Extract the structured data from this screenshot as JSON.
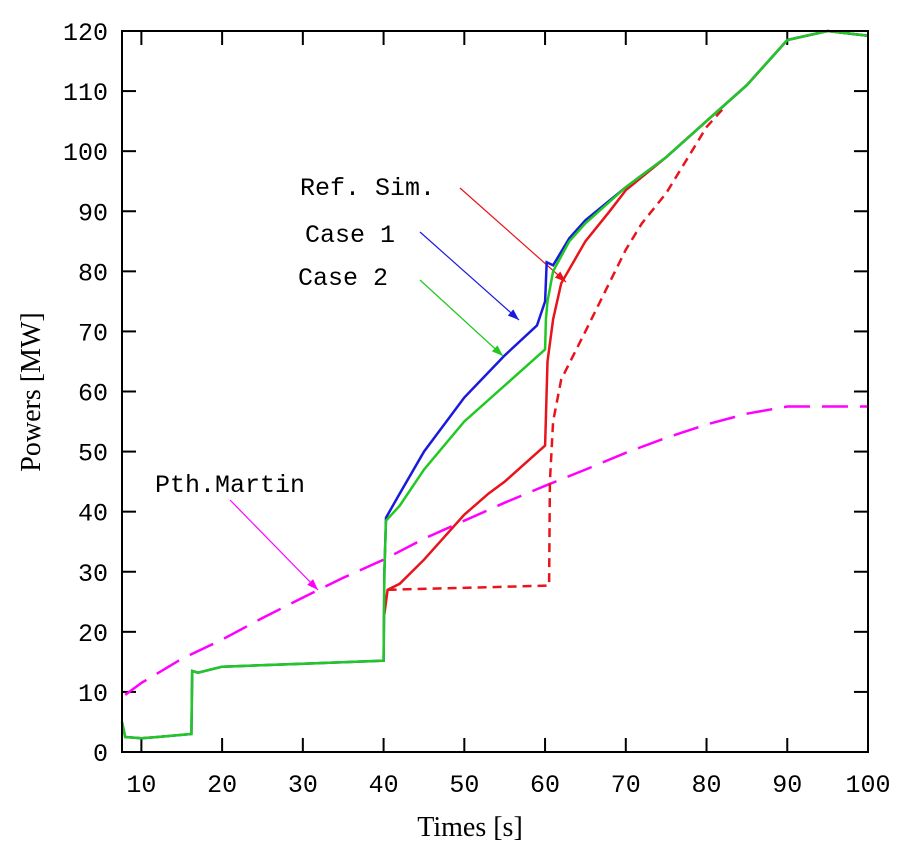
{
  "chart_data": {
    "type": "line",
    "xlabel": "Times [s]",
    "ylabel": "Powers [MW]",
    "xlim": [
      7.6,
      100
    ],
    "ylim": [
      0,
      120
    ],
    "xticks": [
      10,
      20,
      30,
      40,
      50,
      60,
      70,
      80,
      90,
      100
    ],
    "yticks": [
      0,
      10,
      20,
      30,
      40,
      50,
      60,
      70,
      80,
      90,
      100,
      110,
      120
    ],
    "series": [
      {
        "name": "Ref. Sim.",
        "color": "#e8141c",
        "linestyle": "solid",
        "x": [
          40.1,
          40.5,
          42,
          45,
          50,
          53,
          55,
          60,
          60.3,
          61,
          62,
          65,
          68,
          70,
          75,
          80,
          85,
          90,
          95,
          100
        ],
        "values": [
          23,
          27,
          28,
          32,
          39.5,
          43,
          45,
          51,
          65,
          72,
          78,
          85,
          90,
          93.5,
          99,
          105,
          111,
          118.5,
          120,
          119.2
        ]
      },
      {
        "name": "Case 1",
        "color": "#1a1adc",
        "linestyle": "solid",
        "x": [
          7.6,
          8,
          10,
          12,
          16.2,
          16.3,
          17,
          20,
          30,
          40,
          40.1,
          40.3,
          42,
          45,
          50,
          55,
          59,
          60,
          60.2,
          61,
          63,
          65,
          70,
          75,
          80,
          85,
          90,
          95,
          100
        ],
        "values": [
          5,
          2.5,
          2.3,
          2.5,
          3,
          13.5,
          13.2,
          14.2,
          14.7,
          15.2,
          30,
          39,
          43,
          50,
          59,
          66,
          71,
          75,
          81.5,
          81,
          85.5,
          88.5,
          94,
          99,
          105,
          111,
          118.5,
          120,
          119.2
        ]
      },
      {
        "name": "Case 2",
        "color": "#22c822",
        "linestyle": "solid",
        "x": [
          7.6,
          8,
          10,
          12,
          16.2,
          16.3,
          17,
          20,
          30,
          40,
          40.1,
          40.3,
          42,
          45,
          50,
          55,
          60,
          60.1,
          60.3,
          61,
          63,
          65,
          70,
          75,
          80,
          85,
          90,
          95,
          100
        ],
        "values": [
          5,
          2.5,
          2.3,
          2.5,
          3,
          13.5,
          13.2,
          14.2,
          14.7,
          15.2,
          30,
          38.5,
          41,
          47,
          55,
          61,
          67,
          72,
          75,
          80,
          85,
          88,
          94,
          99,
          105,
          111,
          118.5,
          120,
          119.2
        ]
      },
      {
        "name": "Pth.Martin",
        "color": "#ff00ff",
        "linestyle": "long-dashed",
        "x": [
          8,
          10,
          15,
          20,
          25,
          30,
          35,
          40,
          45,
          50,
          55,
          60,
          65,
          70,
          75,
          80,
          85,
          90,
          100
        ],
        "values": [
          9.5,
          11.5,
          15.5,
          18.7,
          22.3,
          25.7,
          29,
          32,
          35.5,
          38.5,
          41.5,
          44.3,
          47,
          49.8,
          52.3,
          54.5,
          56.3,
          57.5,
          57.5
        ]
      },
      {
        "color": "#e8141c",
        "linestyle": "dashed",
        "x": [
          40.5,
          60.5,
          60.6,
          61,
          62,
          65,
          70,
          72,
          75,
          80,
          82
        ],
        "values": [
          27,
          27.7,
          45,
          55,
          62,
          70,
          83.6,
          88,
          93,
          104,
          107
        ]
      }
    ]
  }
}
